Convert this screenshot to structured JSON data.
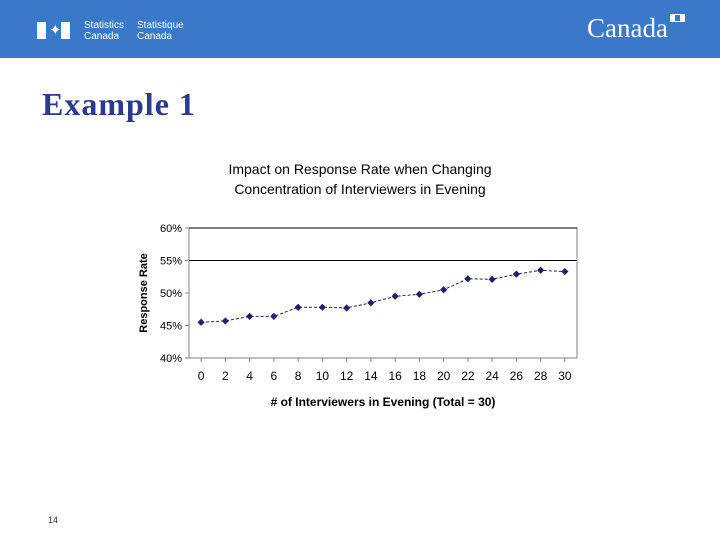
{
  "header": {
    "agency_en_line1": "Statistics",
    "agency_en_line2": "Canada",
    "agency_fr_line1": "Statistique",
    "agency_fr_line2": "Canada",
    "wordmark": "Canada",
    "banner_color": "#3a78c9"
  },
  "slide": {
    "title": "Example 1",
    "page_number": "14",
    "title_color": "#2b3a8f"
  },
  "chart_data": {
    "type": "line",
    "title_line1": "Impact on Response Rate when Changing",
    "title_line2": "Concentration of Interviewers in Evening",
    "xlabel": "# of Interviewers in Evening (Total = 30)",
    "ylabel": "Response Rate",
    "xlim": [
      -1,
      31
    ],
    "ylim": [
      40,
      60
    ],
    "x_ticks": [
      0,
      2,
      4,
      6,
      8,
      10,
      12,
      14,
      16,
      18,
      20,
      22,
      24,
      26,
      28,
      30
    ],
    "y_ticks": [
      40,
      45,
      50,
      55,
      60
    ],
    "y_tick_labels": [
      "40%",
      "45%",
      "50%",
      "55%",
      "60%"
    ],
    "gridlines_y": [
      55,
      60
    ],
    "grid": true,
    "marker_color": "#1f1f6b",
    "series": [
      {
        "name": "Response Rate",
        "x": [
          0,
          2,
          4,
          6,
          8,
          10,
          12,
          14,
          16,
          18,
          20,
          22,
          24,
          26,
          28,
          30
        ],
        "values": [
          45.5,
          45.7,
          46.4,
          46.4,
          47.8,
          47.8,
          47.7,
          48.5,
          49.5,
          49.8,
          50.5,
          52.2,
          52.1,
          52.9,
          53.5,
          53.3
        ]
      }
    ]
  }
}
